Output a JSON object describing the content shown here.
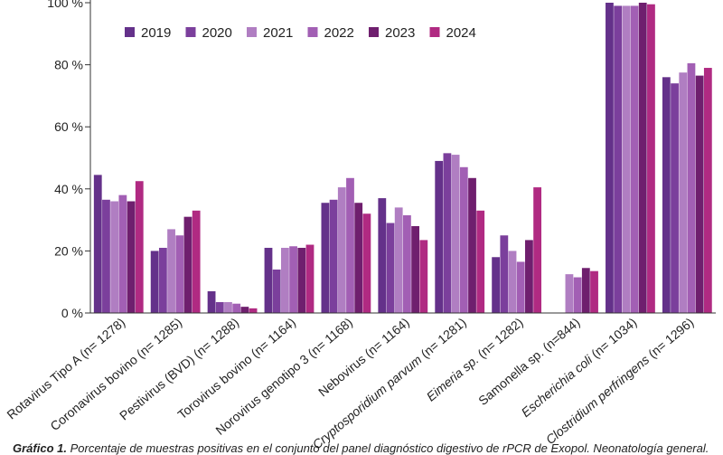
{
  "caption": {
    "label": "Gráfico 1.",
    "text": "Porcentaje de muestras positivas en el conjunto del panel diagnóstico digestivo de rPCR de Exopol. Neonatología general."
  },
  "chart_data": {
    "type": "bar",
    "title": "",
    "xlabel": "",
    "ylabel": "",
    "ylim": [
      0,
      100
    ],
    "yticks": [
      "0 %",
      "20 %",
      "40 %",
      "60 %",
      "80 %",
      "100 %"
    ],
    "grid": false,
    "legend_position": "top",
    "categories": [
      {
        "name": "Rotavirus Tipo A",
        "n": "(n= 1278)"
      },
      {
        "name": "Coronavirus bovino",
        "n": "(n= 1285)"
      },
      {
        "name": "Pestivirus (BVD)",
        "n": "(n= 1288)"
      },
      {
        "name": "Torovirus bovino",
        "n": "(n= 1164)"
      },
      {
        "name": "Norovirus genotipo 3",
        "n": "(n= 1168)"
      },
      {
        "name": "Nebovirus",
        "n": "(n= 1164)"
      },
      {
        "name": "Cryptosporidium parvum",
        "n": "(n= 1281)",
        "italic": true
      },
      {
        "name": "Eimeria sp.",
        "n": "(n= 1282)",
        "italic": true
      },
      {
        "name": "Samonella sp.",
        "n": "(n=844)"
      },
      {
        "name": "Escherichia coli",
        "n": "(n= 1034)",
        "italic": true
      },
      {
        "name": "Clostridium perfringens",
        "n": "(n= 1296)",
        "italic": true
      }
    ],
    "series": [
      {
        "name": "2019",
        "color": "#64318a",
        "values": [
          44.5,
          20,
          7,
          21,
          35.5,
          37,
          49,
          18,
          null,
          100,
          76
        ]
      },
      {
        "name": "2020",
        "color": "#7b3f9c",
        "values": [
          36.5,
          21,
          3.5,
          14,
          36.5,
          29,
          51.5,
          25,
          null,
          99,
          74
        ]
      },
      {
        "name": "2021",
        "color": "#b07ec2",
        "values": [
          36,
          27,
          3.5,
          21,
          40.5,
          34,
          51,
          20,
          12.5,
          99,
          77.5
        ]
      },
      {
        "name": "2022",
        "color": "#a25fb4",
        "values": [
          38,
          25,
          3,
          21.5,
          43.5,
          31.5,
          47,
          16.5,
          11.5,
          99,
          80.5
        ]
      },
      {
        "name": "2023",
        "color": "#6f1f6e",
        "values": [
          36,
          31,
          2,
          21,
          35.5,
          28,
          43.5,
          23.5,
          14.5,
          100,
          76.5
        ]
      },
      {
        "name": "2024",
        "color": "#b02a82",
        "values": [
          42.5,
          33,
          1.5,
          22,
          32,
          23.5,
          33,
          40.5,
          13.5,
          99.5,
          79
        ]
      }
    ]
  }
}
